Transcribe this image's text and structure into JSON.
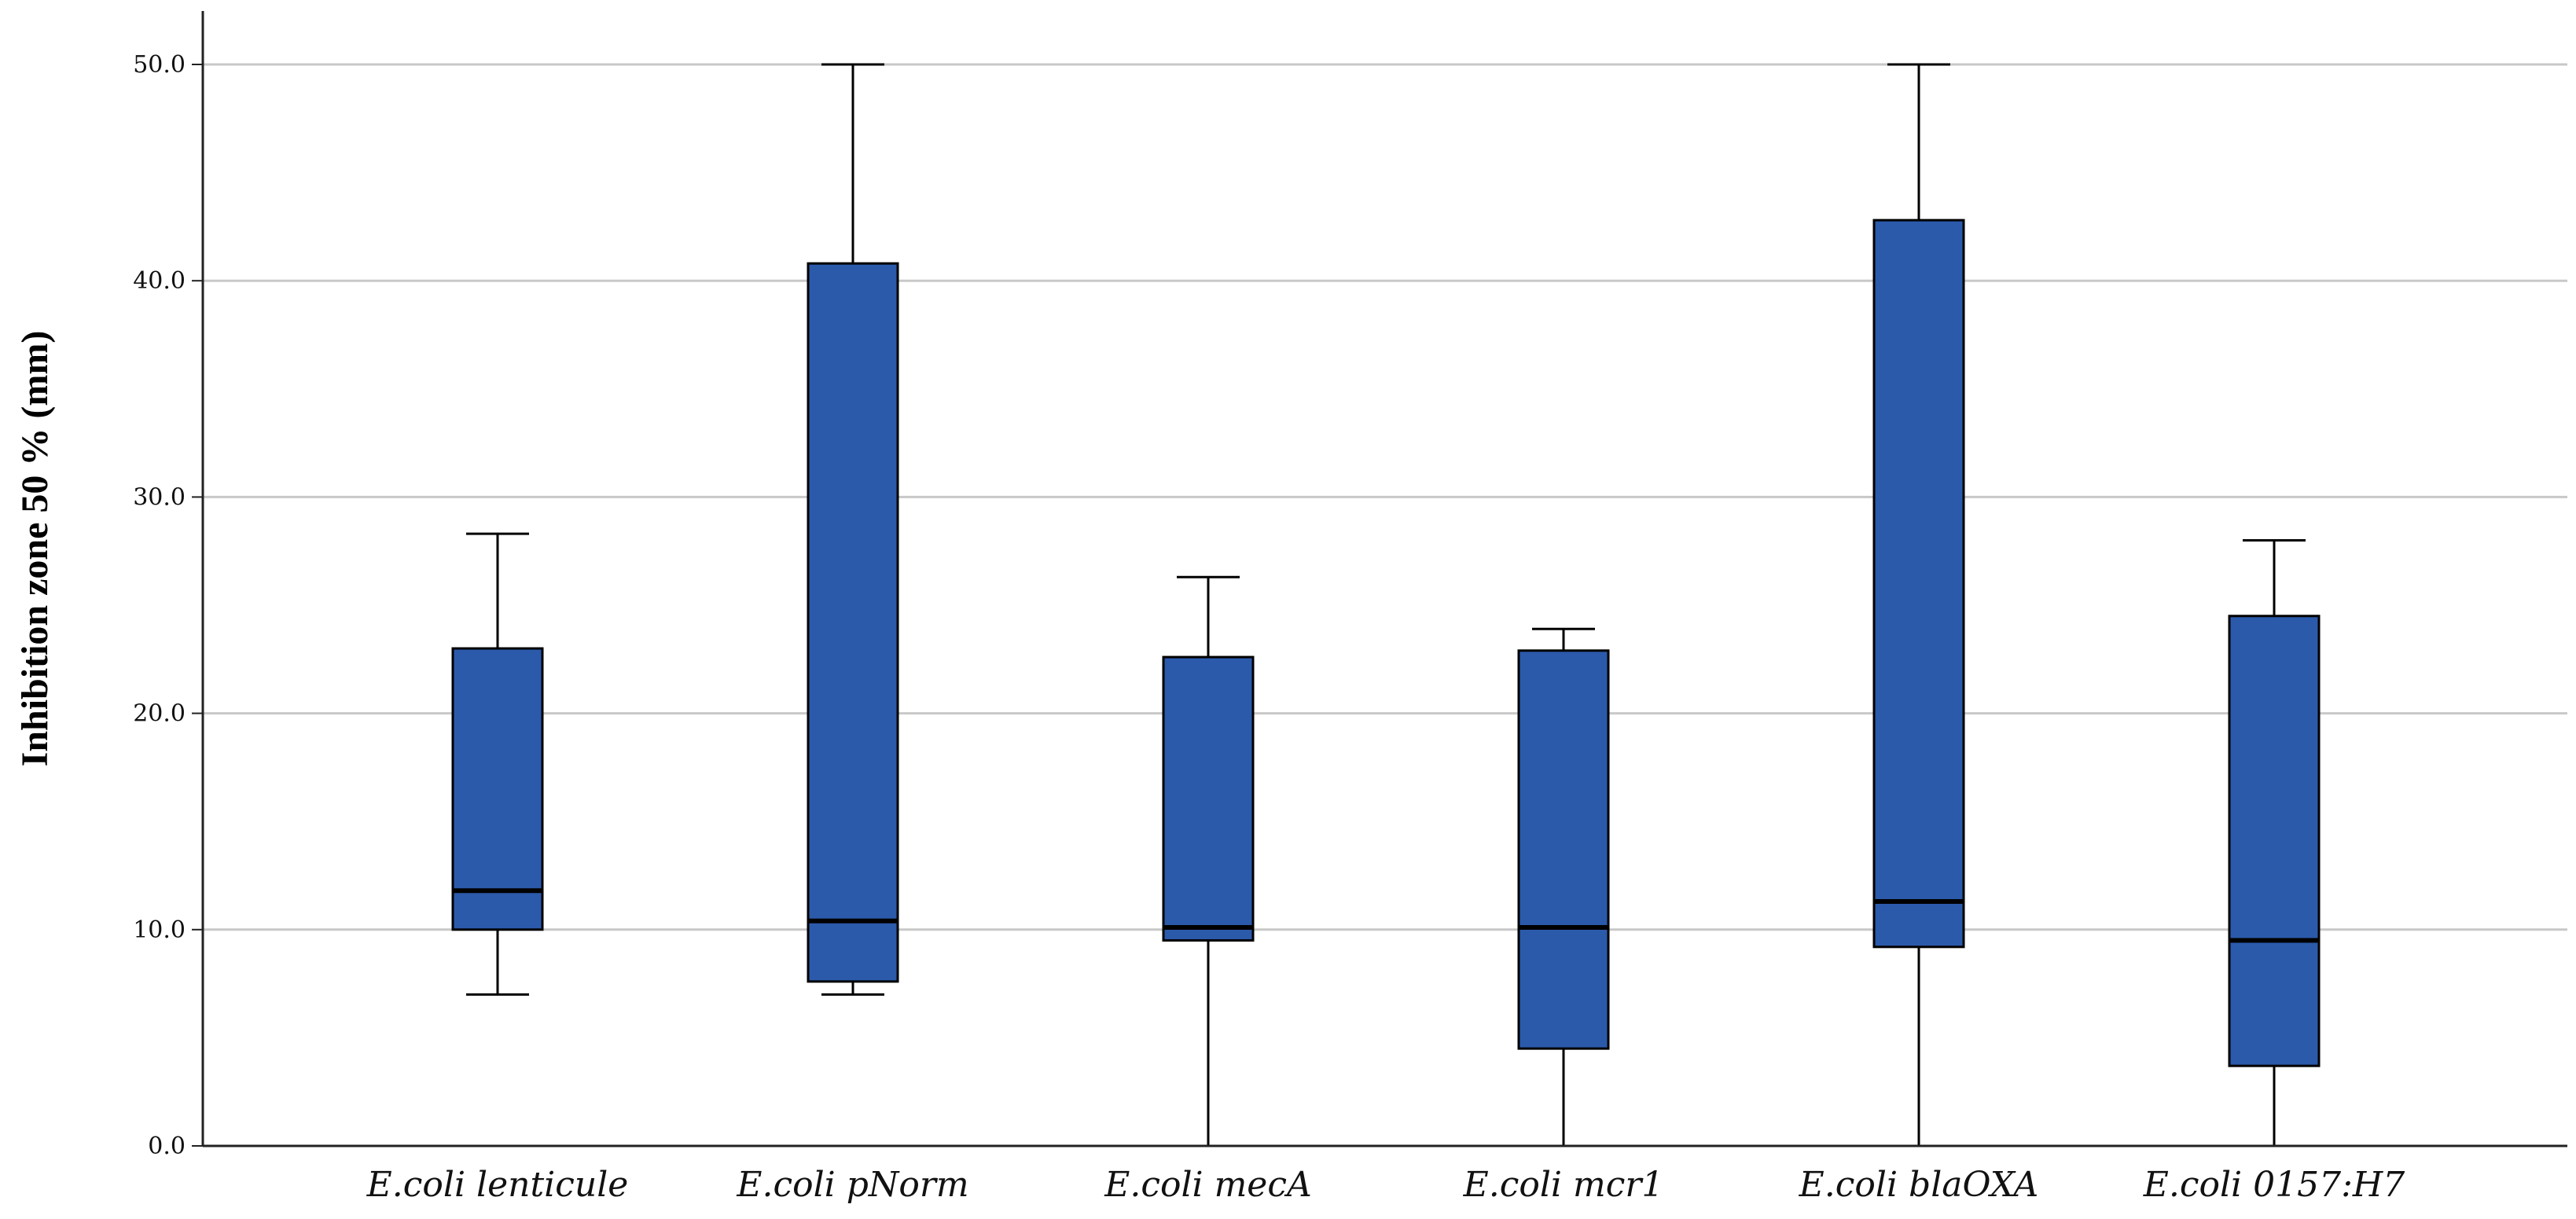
{
  "chart_data": {
    "type": "box",
    "title": "",
    "xlabel": "",
    "ylabel": "Inhibition zone 50 % (mm)",
    "ylim": [
      0,
      52.5
    ],
    "yticks": [
      0,
      10,
      20,
      30,
      40,
      50
    ],
    "ytick_labels": [
      "0.0",
      "10.0",
      "20.0",
      "30.0",
      "40.0",
      "50.0"
    ],
    "grid": "horizontal",
    "box_color": "#2b5aab",
    "categories": [
      "E.coli lenticule",
      "E.coli pNorm",
      "E.coli mecA",
      "E.coli mcr1",
      "E.coli blaOXA",
      "E.coli 0157:H7"
    ],
    "boxes": [
      {
        "min": 7.0,
        "q1": 10.0,
        "median": 11.8,
        "q3": 23.0,
        "max": 28.3
      },
      {
        "min": 7.0,
        "q1": 7.6,
        "median": 10.4,
        "q3": 40.8,
        "max": 50.0
      },
      {
        "min": 0.0,
        "q1": 9.5,
        "median": 10.1,
        "q3": 22.6,
        "max": 26.3
      },
      {
        "min": 0.0,
        "q1": 4.5,
        "median": 10.1,
        "q3": 22.9,
        "max": 23.9
      },
      {
        "min": 0.0,
        "q1": 9.2,
        "median": 11.3,
        "q3": 42.8,
        "max": 50.0
      },
      {
        "min": 0.0,
        "q1": 3.7,
        "median": 9.5,
        "q3": 24.5,
        "max": 28.0
      }
    ]
  }
}
